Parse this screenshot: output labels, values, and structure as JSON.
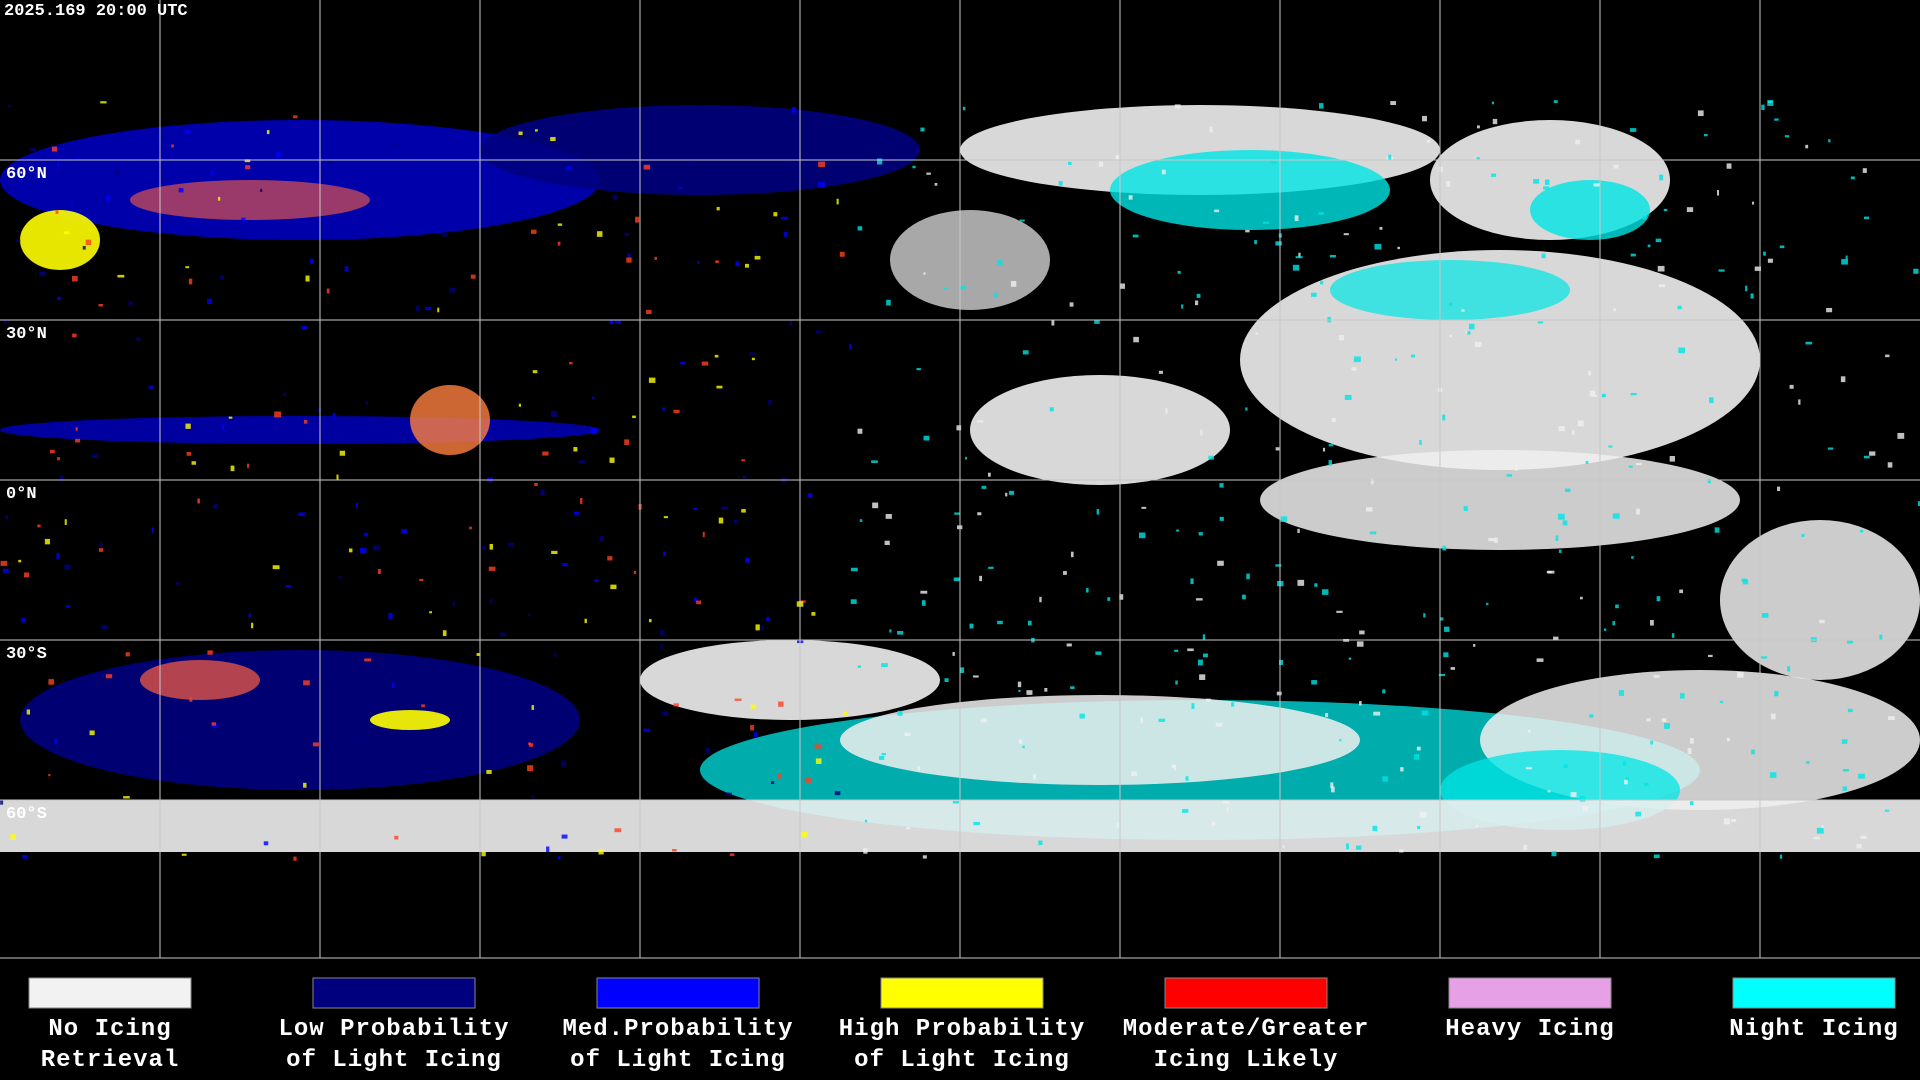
{
  "header": {
    "timestamp": "2025.169 20:00 UTC"
  },
  "grid_labels": [
    "60°N",
    "30°N",
    "0°N",
    "30°S",
    "60°S"
  ],
  "legend": [
    {
      "color": "#f2f2f2",
      "lines": [
        "No Icing",
        "Retrieval"
      ]
    },
    {
      "color": "#00007f",
      "lines": [
        "Low Probability",
        "of Light Icing"
      ]
    },
    {
      "color": "#0000ff",
      "lines": [
        "Med.Probability",
        "of Light Icing"
      ]
    },
    {
      "color": "#ffff00",
      "lines": [
        "High Probability",
        "of Light Icing"
      ]
    },
    {
      "color": "#ff0000",
      "lines": [
        "Moderate/Greater",
        "Icing Likely"
      ]
    },
    {
      "color": "#e6a0e6",
      "lines": [
        "Heavy Icing"
      ]
    },
    {
      "color": "#00ffff",
      "lines": [
        "Night Icing"
      ]
    }
  ]
}
